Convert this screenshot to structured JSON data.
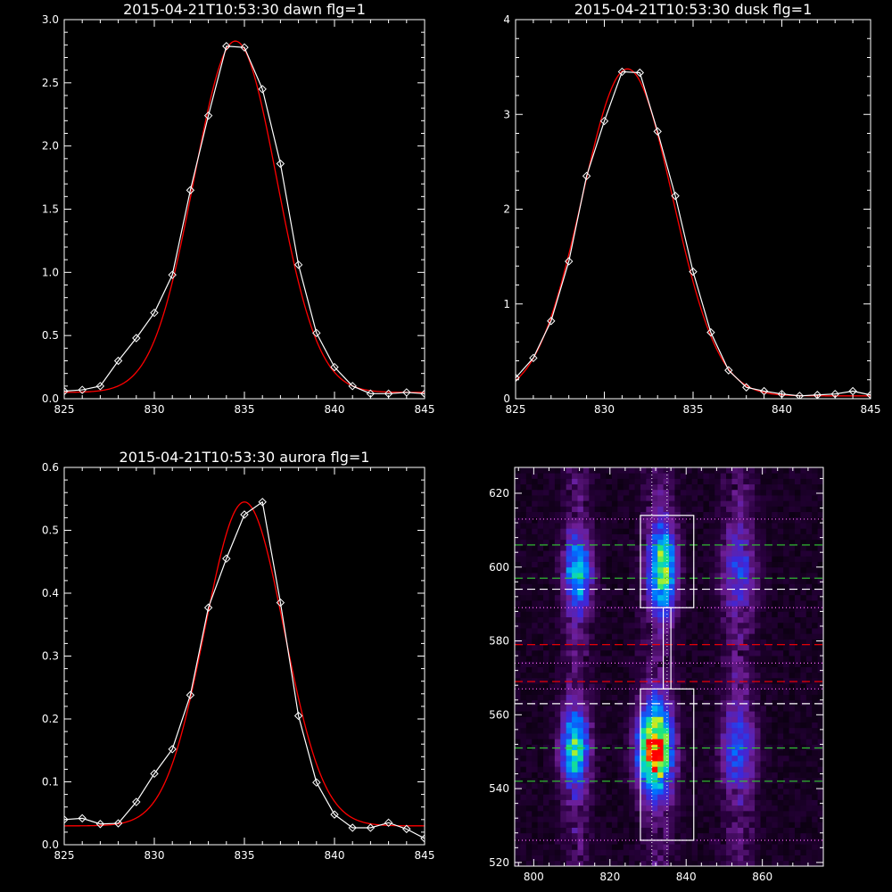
{
  "chart_data": [
    {
      "type": "line",
      "title": "2015-04-21T10:53:30 dawn flg=1",
      "xlim": [
        825,
        845
      ],
      "ylim": [
        0,
        3.0
      ],
      "xticks": [
        "825",
        "830",
        "835",
        "840",
        "845"
      ],
      "yticks": [
        "0.0",
        "0.5",
        "1.0",
        "1.5",
        "2.0",
        "2.5",
        "3.0"
      ],
      "series": [
        {
          "color": "#ffffff",
          "marker": "diamond",
          "x": [
            825,
            826,
            827,
            828,
            829,
            830,
            831,
            832,
            833,
            834,
            835,
            836,
            837,
            838,
            839,
            840,
            841,
            842,
            843,
            844,
            845
          ],
          "y": [
            0.06,
            0.07,
            0.1,
            0.3,
            0.48,
            0.68,
            0.98,
            1.65,
            2.24,
            2.79,
            2.78,
            2.45,
            1.86,
            1.06,
            0.52,
            0.25,
            0.1,
            0.04,
            0.04,
            0.05,
            0.04
          ]
        },
        {
          "color": "#ff0000",
          "fit": "gaussian",
          "amp": 2.78,
          "center": 834.5,
          "sigma": 2.3,
          "base": 0.05
        }
      ]
    },
    {
      "type": "line",
      "title": "2015-04-21T10:53:30 dusk flg=1",
      "xlim": [
        825,
        845
      ],
      "ylim": [
        0,
        4
      ],
      "xticks": [
        "825",
        "830",
        "835",
        "840",
        "845"
      ],
      "yticks": [
        "0",
        "1",
        "2",
        "3",
        "4"
      ],
      "series": [
        {
          "color": "#ffffff",
          "marker": "diamond",
          "x": [
            825,
            826,
            827,
            828,
            829,
            830,
            831,
            832,
            833,
            834,
            835,
            836,
            837,
            838,
            839,
            840,
            841,
            842,
            843,
            844,
            845
          ],
          "y": [
            0.22,
            0.43,
            0.82,
            1.45,
            2.35,
            2.93,
            3.45,
            3.44,
            2.82,
            2.14,
            1.34,
            0.7,
            0.3,
            0.12,
            0.08,
            0.05,
            0.03,
            0.04,
            0.05,
            0.08,
            0.04
          ]
        },
        {
          "color": "#ff0000",
          "fit": "gaussian",
          "amp": 3.45,
          "center": 831.3,
          "sigma": 2.55,
          "base": 0.03
        }
      ]
    },
    {
      "type": "line",
      "title": "2015-04-21T10:53:30 aurora flg=1",
      "xlim": [
        825,
        845
      ],
      "ylim": [
        0,
        0.6
      ],
      "xticks": [
        "825",
        "830",
        "835",
        "840",
        "845"
      ],
      "yticks": [
        "0.0",
        "0.1",
        "0.2",
        "0.3",
        "0.4",
        "0.5",
        "0.6"
      ],
      "series": [
        {
          "color": "#ffffff",
          "marker": "diamond",
          "x": [
            825,
            826,
            827,
            828,
            829,
            830,
            831,
            832,
            833,
            834,
            835,
            836,
            837,
            838,
            839,
            840,
            841,
            842,
            843,
            844,
            845
          ],
          "y": [
            0.04,
            0.042,
            0.033,
            0.034,
            0.068,
            0.113,
            0.152,
            0.238,
            0.377,
            0.455,
            0.525,
            0.545,
            0.385,
            0.205,
            0.099,
            0.048,
            0.027,
            0.027,
            0.035,
            0.025,
            0.01
          ]
        },
        {
          "color": "#ff0000",
          "fit": "gaussian",
          "amp": 0.515,
          "center": 835.0,
          "sigma": 2.2,
          "base": 0.03
        }
      ]
    },
    {
      "type": "heatmap",
      "xlim": [
        795,
        876
      ],
      "ylim": [
        519,
        627
      ],
      "xticks": [
        800,
        820,
        840,
        860
      ],
      "yticks": [
        520,
        540,
        560,
        580,
        600,
        620
      ],
      "blobs": [
        {
          "x": 811,
          "y": 598,
          "sx": 2.5,
          "sy": 7,
          "amp": 0.45
        },
        {
          "x": 833,
          "y": 599,
          "sx": 2.5,
          "sy": 8,
          "amp": 0.62
        },
        {
          "x": 853,
          "y": 598,
          "sx": 3,
          "sy": 7,
          "amp": 0.22
        },
        {
          "x": 810,
          "y": 550,
          "sx": 2.5,
          "sy": 7,
          "amp": 0.55
        },
        {
          "x": 831,
          "y": 550,
          "sx": 3,
          "sy": 8,
          "amp": 0.92
        },
        {
          "x": 853,
          "y": 550,
          "sx": 3,
          "sy": 7,
          "amp": 0.28
        }
      ],
      "boxes": [
        {
          "x0": 828,
          "x1": 842,
          "y0": 589,
          "y1": 614
        },
        {
          "x0": 828,
          "x1": 842,
          "y0": 526,
          "y1": 567
        },
        {
          "x0": 834,
          "x1": 836,
          "y0": 567,
          "y1": 589
        }
      ],
      "hlines": [
        {
          "y": 613,
          "color": "#ff66ff",
          "style": "dotted"
        },
        {
          "y": 606,
          "color": "#33cc33",
          "style": "dashed"
        },
        {
          "y": 597,
          "color": "#33cc33",
          "style": "dashed"
        },
        {
          "y": 594,
          "color": "#ffffff",
          "style": "dashed"
        },
        {
          "y": 589,
          "color": "#ff66ff",
          "style": "dotted"
        },
        {
          "y": 579,
          "color": "#ff0000",
          "style": "dashed"
        },
        {
          "y": 574,
          "color": "#ff66ff",
          "style": "dotted"
        },
        {
          "y": 569,
          "color": "#ff0000",
          "style": "dashed"
        },
        {
          "y": 567,
          "color": "#ff66ff",
          "style": "dotted"
        },
        {
          "y": 563,
          "color": "#ffffff",
          "style": "dashed"
        },
        {
          "y": 551,
          "color": "#33cc33",
          "style": "dashed"
        },
        {
          "y": 542,
          "color": "#33cc33",
          "style": "dashed"
        },
        {
          "y": 526,
          "color": "#ff66ff",
          "style": "dotted"
        }
      ],
      "vlines": [
        {
          "x": 831,
          "color": "#ffffff",
          "style": "dotted"
        },
        {
          "x": 835,
          "color": "#ffffff",
          "style": "dotted"
        }
      ]
    }
  ]
}
